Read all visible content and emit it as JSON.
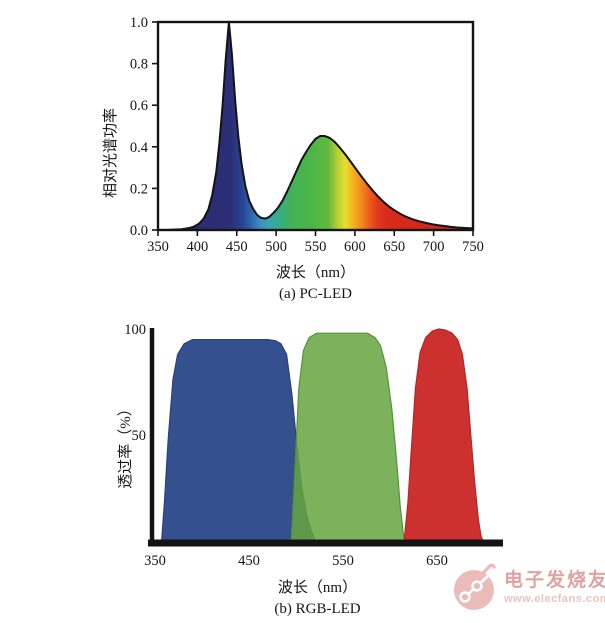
{
  "page": {
    "background": "#ffffff",
    "axis_color": "#141414"
  },
  "chart_data": [
    {
      "type": "area",
      "title": "(a) PC-LED",
      "xlabel": "波长（nm）",
      "ylabel": "相对光谱功率",
      "xlim": [
        350,
        750
      ],
      "ylim": [
        0,
        1.0
      ],
      "x_ticks": [
        350,
        400,
        450,
        500,
        550,
        600,
        650,
        700,
        750
      ],
      "y_ticks": [
        "0.0",
        "0.2",
        "0.4",
        "0.6",
        "0.8",
        "1.0"
      ],
      "grid": false,
      "legend": "none",
      "fill": "spectral-gradient",
      "outline_color": "#141414",
      "gradient_stops": [
        {
          "wavelength": 350,
          "color": "#292b6d"
        },
        {
          "wavelength": 420,
          "color": "#2a2d72"
        },
        {
          "wavelength": 442,
          "color": "#2c2f78"
        },
        {
          "wavelength": 456,
          "color": "#27418f"
        },
        {
          "wavelength": 468,
          "color": "#2f64ae"
        },
        {
          "wavelength": 480,
          "color": "#3d8fc4"
        },
        {
          "wavelength": 492,
          "color": "#38a7ad"
        },
        {
          "wavelength": 505,
          "color": "#36ad83"
        },
        {
          "wavelength": 520,
          "color": "#43b254"
        },
        {
          "wavelength": 545,
          "color": "#4ab648"
        },
        {
          "wavelength": 566,
          "color": "#63b83f"
        },
        {
          "wavelength": 578,
          "color": "#b7cf35"
        },
        {
          "wavelength": 588,
          "color": "#e7de2e"
        },
        {
          "wavelength": 598,
          "color": "#f4b321"
        },
        {
          "wavelength": 608,
          "color": "#f28c1b"
        },
        {
          "wavelength": 618,
          "color": "#ec5f1d"
        },
        {
          "wavelength": 628,
          "color": "#e23a1e"
        },
        {
          "wavelength": 640,
          "color": "#d92a1c"
        },
        {
          "wavelength": 700,
          "color": "#d2261a"
        },
        {
          "wavelength": 750,
          "color": "#cd2418"
        }
      ],
      "points": [
        [
          350,
          0
        ],
        [
          360,
          0
        ],
        [
          370,
          0.002
        ],
        [
          380,
          0.004
        ],
        [
          388,
          0.008
        ],
        [
          395,
          0.015
        ],
        [
          402,
          0.03
        ],
        [
          408,
          0.055
        ],
        [
          414,
          0.1
        ],
        [
          419,
          0.17
        ],
        [
          424,
          0.28
        ],
        [
          428,
          0.42
        ],
        [
          432,
          0.6
        ],
        [
          436,
          0.82
        ],
        [
          440,
          1.0
        ],
        [
          444,
          0.84
        ],
        [
          448,
          0.62
        ],
        [
          452,
          0.45
        ],
        [
          456,
          0.32
        ],
        [
          461,
          0.21
        ],
        [
          466,
          0.14
        ],
        [
          471,
          0.1
        ],
        [
          476,
          0.072
        ],
        [
          481,
          0.058
        ],
        [
          486,
          0.055
        ],
        [
          491,
          0.062
        ],
        [
          496,
          0.08
        ],
        [
          502,
          0.105
        ],
        [
          508,
          0.14
        ],
        [
          514,
          0.185
        ],
        [
          520,
          0.235
        ],
        [
          526,
          0.285
        ],
        [
          532,
          0.335
        ],
        [
          538,
          0.375
        ],
        [
          544,
          0.41
        ],
        [
          550,
          0.438
        ],
        [
          556,
          0.452
        ],
        [
          562,
          0.452
        ],
        [
          568,
          0.443
        ],
        [
          574,
          0.425
        ],
        [
          580,
          0.4
        ],
        [
          587,
          0.368
        ],
        [
          594,
          0.332
        ],
        [
          601,
          0.295
        ],
        [
          608,
          0.259
        ],
        [
          615,
          0.225
        ],
        [
          622,
          0.193
        ],
        [
          629,
          0.163
        ],
        [
          636,
          0.137
        ],
        [
          643,
          0.114
        ],
        [
          650,
          0.095
        ],
        [
          658,
          0.077
        ],
        [
          666,
          0.062
        ],
        [
          674,
          0.051
        ],
        [
          682,
          0.042
        ],
        [
          690,
          0.034
        ],
        [
          698,
          0.028
        ],
        [
          706,
          0.023
        ],
        [
          714,
          0.019
        ],
        [
          722,
          0.015
        ],
        [
          730,
          0.012
        ],
        [
          738,
          0.01
        ],
        [
          746,
          0.008
        ],
        [
          750,
          0.008
        ]
      ]
    },
    {
      "type": "area",
      "title": "(b) RGB-LED",
      "xlabel": "波长（nm）",
      "ylabel": "透过率（%）",
      "xlim": [
        350,
        720
      ],
      "ylim": [
        0,
        100
      ],
      "x_ticks": [
        350,
        450,
        550,
        650
      ],
      "y_ticks": [
        50,
        100
      ],
      "grid": false,
      "legend": "none",
      "series": [
        {
          "name": "blue-filter",
          "color": "#35508f",
          "edge_color": "#2b4279",
          "opacity": 1,
          "points": [
            [
              357,
              0
            ],
            [
              360,
              18
            ],
            [
              364,
              48
            ],
            [
              369,
              76
            ],
            [
              374,
              88
            ],
            [
              381,
              93
            ],
            [
              390,
              95
            ],
            [
              470,
              95
            ],
            [
              478,
              94.5
            ],
            [
              484,
              93
            ],
            [
              490,
              88
            ],
            [
              496,
              68
            ],
            [
              501,
              45
            ],
            [
              506,
              26
            ],
            [
              511,
              13
            ],
            [
              516,
              5
            ],
            [
              521,
              0
            ]
          ]
        },
        {
          "name": "green-filter",
          "color": "#65a53e",
          "edge_color": "#579238",
          "opacity": 0.85,
          "points": [
            [
              495,
              0
            ],
            [
              499,
              35
            ],
            [
              503,
              72
            ],
            [
              508,
              90
            ],
            [
              514,
              96
            ],
            [
              522,
              98
            ],
            [
              576,
              98
            ],
            [
              584,
              96
            ],
            [
              590,
              92
            ],
            [
              596,
              82
            ],
            [
              602,
              62
            ],
            [
              607,
              38
            ],
            [
              611,
              16
            ],
            [
              614,
              4
            ],
            [
              616,
              0
            ]
          ]
        },
        {
          "name": "red-filter",
          "color": "#cc3130",
          "edge_color": "#b02928",
          "opacity": 1,
          "points": [
            [
              615,
              0
            ],
            [
              619,
              18
            ],
            [
              623,
              45
            ],
            [
              627,
              72
            ],
            [
              632,
              89
            ],
            [
              638,
              96
            ],
            [
              645,
              99
            ],
            [
              652,
              100
            ],
            [
              659,
              99.5
            ],
            [
              666,
              98
            ],
            [
              672,
              95
            ],
            [
              677,
              88
            ],
            [
              682,
              72
            ],
            [
              686,
              50
            ],
            [
              690,
              28
            ],
            [
              694,
              10
            ],
            [
              697,
              2
            ],
            [
              699,
              0
            ]
          ]
        }
      ]
    }
  ],
  "watermark": {
    "brand": "电子发烧友",
    "url": "www.elecfans.com"
  }
}
